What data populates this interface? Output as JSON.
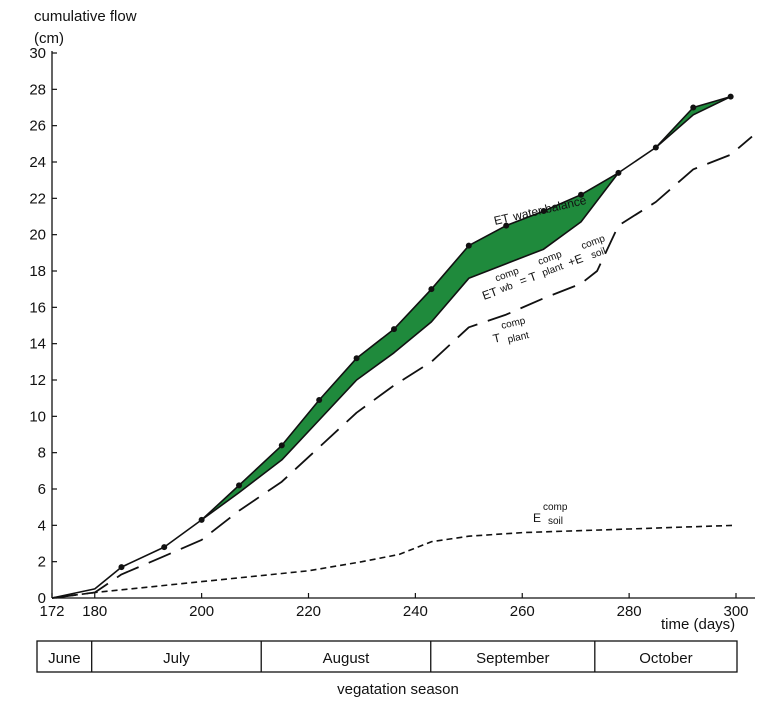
{
  "chart_data": {
    "type": "line",
    "ylabel_line1": "cumulative flow",
    "ylabel_line2": "(cm)",
    "xlabel": "time (days)",
    "season_label": "vegatation season",
    "xlim": [
      172,
      300
    ],
    "ylim": [
      0,
      30
    ],
    "x_ticks": [
      172,
      180,
      200,
      220,
      240,
      260,
      280,
      300
    ],
    "y_ticks": [
      0,
      2,
      4,
      6,
      8,
      10,
      12,
      14,
      16,
      18,
      20,
      22,
      24,
      26,
      28,
      30
    ],
    "grid": false,
    "fill_color": "#1f8a3c",
    "series": [
      {
        "key": "et_water_balance",
        "style": "solid-markers",
        "x": [
          172,
          180,
          185,
          193,
          200,
          207,
          215,
          222,
          229,
          236,
          243,
          250,
          257,
          264,
          271,
          278,
          285,
          292,
          299
        ],
        "y": [
          0,
          0.5,
          1.7,
          2.8,
          4.3,
          6.2,
          8.4,
          10.9,
          13.2,
          14.8,
          17.0,
          19.4,
          20.5,
          21.3,
          22.2,
          23.4,
          24.8,
          27.0,
          27.6
        ]
      },
      {
        "key": "et_comp",
        "style": "solid",
        "x": [
          200,
          207,
          215,
          222,
          229,
          236,
          243,
          250,
          257,
          264,
          271,
          278
        ],
        "y": [
          4.3,
          5.8,
          7.6,
          9.8,
          12.0,
          13.5,
          15.2,
          17.6,
          18.4,
          19.2,
          20.7,
          23.4
        ]
      },
      {
        "key": "et_comp_upper",
        "style": "solid",
        "x": [
          285,
          292,
          299
        ],
        "y": [
          24.8,
          26.6,
          27.6
        ]
      },
      {
        "key": "t_comp_plant",
        "style": "long-dash",
        "x": [
          172,
          180,
          185,
          193,
          200,
          207,
          215,
          222,
          229,
          236,
          243,
          250,
          257,
          264,
          271,
          274,
          278,
          285,
          292,
          299,
          303
        ],
        "y": [
          0,
          0.3,
          1.3,
          2.3,
          3.2,
          4.8,
          6.4,
          8.3,
          10.2,
          11.7,
          13.0,
          14.9,
          15.6,
          16.5,
          17.3,
          18.0,
          20.5,
          21.8,
          23.6,
          24.4,
          25.4
        ]
      },
      {
        "key": "e_comp_soil",
        "style": "short-dash",
        "x": [
          172,
          180,
          190,
          200,
          210,
          220,
          230,
          237,
          243,
          250,
          260,
          270,
          280,
          290,
          300
        ],
        "y": [
          0,
          0.3,
          0.6,
          0.9,
          1.2,
          1.5,
          2.0,
          2.4,
          3.1,
          3.4,
          3.6,
          3.7,
          3.8,
          3.9,
          4.0
        ]
      }
    ],
    "annotations": {
      "et_wb": {
        "main": "ET",
        "rest": "water balance"
      },
      "et_comp": {
        "et": "ET",
        "et_sup": "comp",
        "et_sub": "wb",
        "eq": "= T",
        "t_sup": "comp",
        "t_sub": "plant",
        "plus": "+E",
        "e_sup": "comp",
        "e_sub": "soil"
      },
      "t_comp": {
        "main": "T",
        "sup": "comp",
        "sub": "plant"
      },
      "e_comp": {
        "main": "E",
        "sup": "comp",
        "sub": "soil"
      }
    },
    "months": [
      {
        "label": "June",
        "start": 172,
        "end": 182
      },
      {
        "label": "July",
        "start": 182,
        "end": 213
      },
      {
        "label": "August",
        "start": 213,
        "end": 244
      },
      {
        "label": "September",
        "start": 244,
        "end": 274
      },
      {
        "label": "October",
        "start": 274,
        "end": 300
      }
    ]
  }
}
